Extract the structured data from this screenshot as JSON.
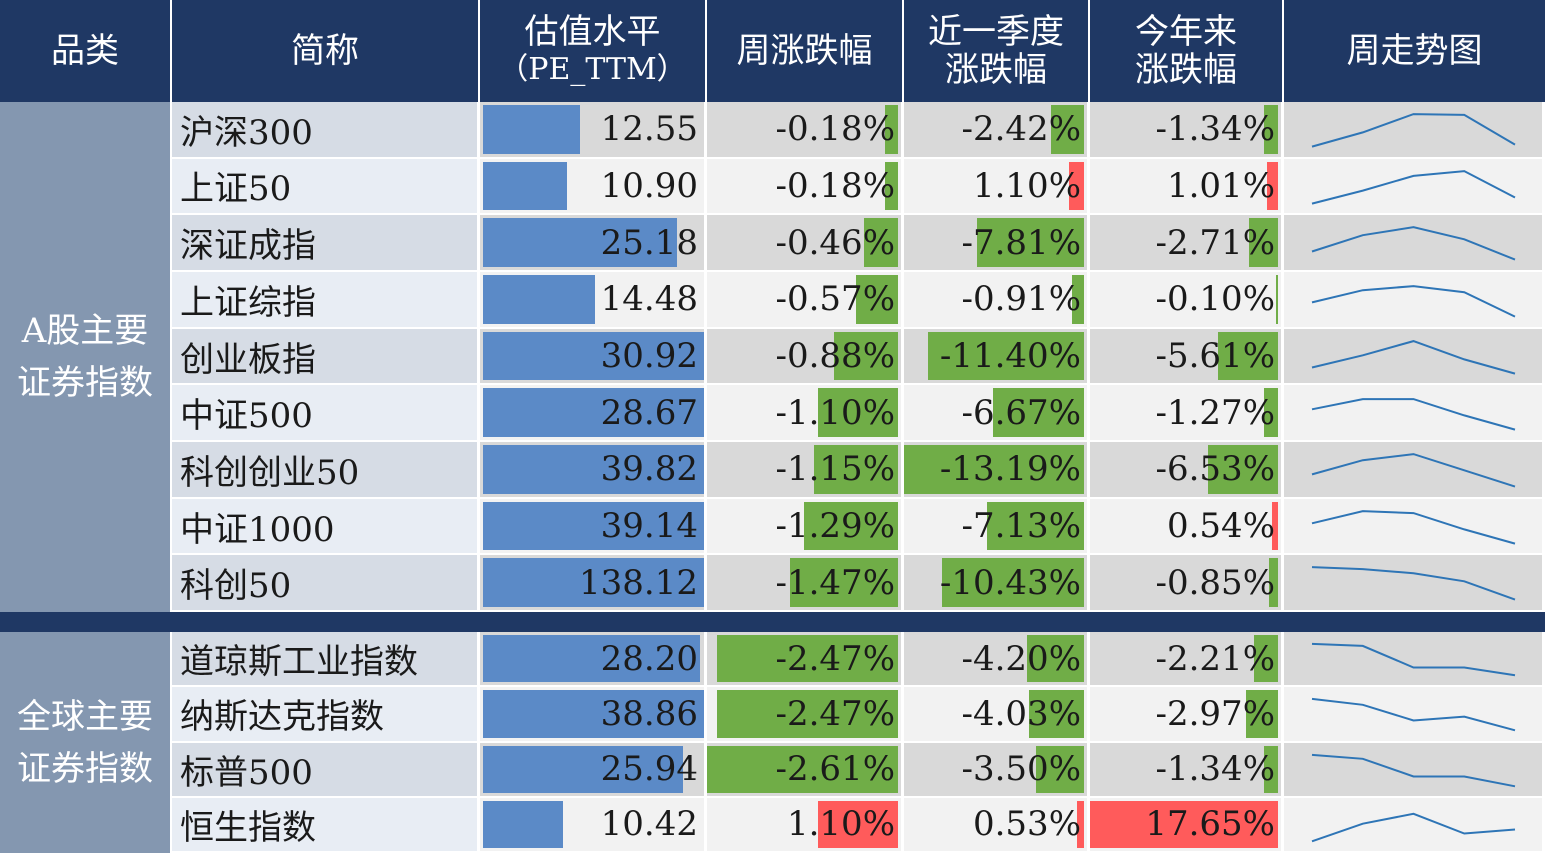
{
  "headers": {
    "category": "品类",
    "name": "简称",
    "pe_line1": "估值水平",
    "pe_line2": "（PE_TTM）",
    "week": "周涨跌幅",
    "quarter_line1": "近一季度",
    "quarter_line2": "涨跌幅",
    "ytd_line1": "今年来",
    "ytd_line2": "涨跌幅",
    "trend": "周走势图"
  },
  "groups": [
    {
      "label": "A股主要证券指数",
      "rows": [
        {
          "name": "沪深300",
          "pe": "12.55",
          "pe_val": 12.55,
          "week": "-0.18%",
          "week_val": -0.18,
          "quarter": "-2.42%",
          "quarter_val": -2.42,
          "ytd": "-1.34%",
          "ytd_val": -1.34,
          "trend": [
            0.1,
            0.45,
            0.9,
            0.88,
            0.15
          ]
        },
        {
          "name": "上证50",
          "pe": "10.90",
          "pe_val": 10.9,
          "week": "-0.18%",
          "week_val": -0.18,
          "quarter": "1.10%",
          "quarter_val": 1.1,
          "ytd": "1.01%",
          "ytd_val": 1.01,
          "trend": [
            0.1,
            0.42,
            0.78,
            0.9,
            0.25
          ]
        },
        {
          "name": "深证成指",
          "pe": "25.18",
          "pe_val": 25.18,
          "week": "-0.46%",
          "week_val": -0.46,
          "quarter": "-7.81%",
          "quarter_val": -7.81,
          "ytd": "-2.71%",
          "ytd_val": -2.71,
          "trend": [
            0.3,
            0.7,
            0.9,
            0.6,
            0.1
          ]
        },
        {
          "name": "上证综指",
          "pe": "14.48",
          "pe_val": 14.48,
          "week": "-0.57%",
          "week_val": -0.57,
          "quarter": "-0.91%",
          "quarter_val": -0.91,
          "ytd": "-0.10%",
          "ytd_val": -0.1,
          "trend": [
            0.45,
            0.75,
            0.85,
            0.7,
            0.1
          ]
        },
        {
          "name": "创业板指",
          "pe": "30.92",
          "pe_val": 30.92,
          "week": "-0.88%",
          "week_val": -0.88,
          "quarter": "-11.40%",
          "quarter_val": -11.4,
          "ytd": "-5.61%",
          "ytd_val": -5.61,
          "trend": [
            0.25,
            0.55,
            0.9,
            0.45,
            0.1
          ]
        },
        {
          "name": "中证500",
          "pe": "28.67",
          "pe_val": 28.67,
          "week": "-1.10%",
          "week_val": -1.1,
          "quarter": "-6.67%",
          "quarter_val": -6.67,
          "ytd": "-1.27%",
          "ytd_val": -1.27,
          "trend": [
            0.6,
            0.85,
            0.85,
            0.45,
            0.1
          ]
        },
        {
          "name": "科创创业50",
          "pe": "39.82",
          "pe_val": 39.82,
          "week": "-1.15%",
          "week_val": -1.15,
          "quarter": "-13.19%",
          "quarter_val": -13.19,
          "ytd": "-6.53%",
          "ytd_val": -6.53,
          "trend": [
            0.4,
            0.75,
            0.9,
            0.5,
            0.1
          ]
        },
        {
          "name": "中证1000",
          "pe": "39.14",
          "pe_val": 39.14,
          "week": "-1.29%",
          "week_val": -1.29,
          "quarter": "-7.13%",
          "quarter_val": -7.13,
          "ytd": "0.54%",
          "ytd_val": 0.54,
          "trend": [
            0.6,
            0.9,
            0.85,
            0.45,
            0.1
          ]
        },
        {
          "name": "科创50",
          "pe": "138.12",
          "pe_val": 138.12,
          "week": "-1.47%",
          "week_val": -1.47,
          "quarter": "-10.43%",
          "quarter_val": -10.43,
          "ytd": "-0.85%",
          "ytd_val": -0.85,
          "trend": [
            0.9,
            0.85,
            0.75,
            0.55,
            0.1
          ]
        }
      ]
    },
    {
      "label": "全球主要证券指数",
      "rows": [
        {
          "name": "道琼斯工业指数",
          "pe": "28.20",
          "pe_val": 28.2,
          "week": "-2.47%",
          "week_val": -2.47,
          "quarter": "-4.20%",
          "quarter_val": -4.2,
          "ytd": "-2.21%",
          "ytd_val": -2.21,
          "trend": [
            0.9,
            0.85,
            0.3,
            0.3,
            0.1
          ]
        },
        {
          "name": "纳斯达克指数",
          "pe": "38.86",
          "pe_val": 38.86,
          "week": "-2.47%",
          "week_val": -2.47,
          "quarter": "-4.03%",
          "quarter_val": -4.03,
          "ytd": "-2.97%",
          "ytd_val": -2.97,
          "trend": [
            0.9,
            0.75,
            0.35,
            0.45,
            0.1
          ]
        },
        {
          "name": "标普500",
          "pe": "25.94",
          "pe_val": 25.94,
          "week": "-2.61%",
          "week_val": -2.61,
          "quarter": "-3.50%",
          "quarter_val": -3.5,
          "ytd": "-1.34%",
          "ytd_val": -1.34,
          "trend": [
            0.9,
            0.8,
            0.35,
            0.35,
            0.1
          ]
        },
        {
          "name": "恒生指数",
          "pe": "10.42",
          "pe_val": 10.42,
          "week": "1.10%",
          "week_val": 1.1,
          "quarter": "0.53%",
          "quarter_val": 0.53,
          "ytd": "17.65%",
          "ytd_val": 17.65,
          "trend": [
            0.1,
            0.55,
            0.8,
            0.3,
            0.4
          ]
        }
      ]
    }
  ],
  "colors": {
    "header_bg": "#1f3864",
    "category_bg": "#8497b0",
    "pe_bar": "#5b8ac7",
    "negative_bar": "#70ad47",
    "positive_bar": "#ff5b5b",
    "sparkline": "#2e75b6",
    "row_light": "#f2f2f2",
    "row_dark": "#d9d9d9",
    "name_light": "#e8edf4",
    "name_dark": "#d6dce5"
  }
}
